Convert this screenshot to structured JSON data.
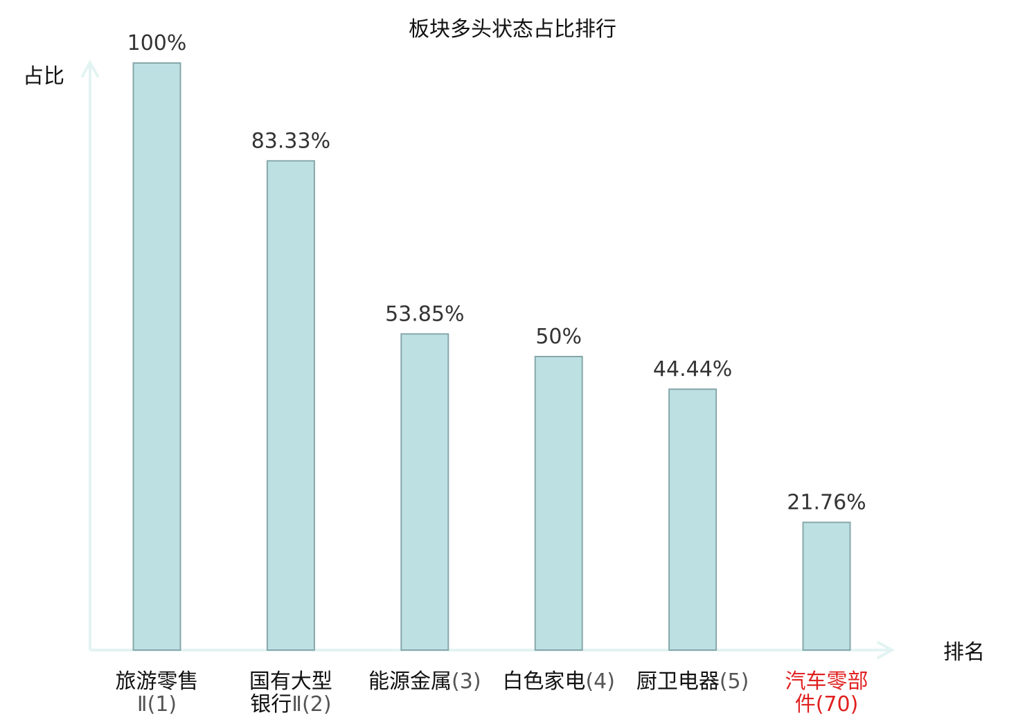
{
  "chart_data": {
    "type": "bar",
    "title": "板块多头状态占比排行",
    "ylabel": "占比",
    "xlabel": "排名",
    "ylim": [
      0,
      100
    ],
    "grid": false,
    "categories": [
      {
        "lines": [
          {
            "name": "旅游零售",
            "rank": ""
          },
          {
            "name": "",
            "rank": "Ⅱ(1)"
          }
        ],
        "highlight": false
      },
      {
        "lines": [
          {
            "name": "国有大型",
            "rank": ""
          },
          {
            "name": "银行",
            "rank": "Ⅱ(2)"
          }
        ],
        "highlight": false
      },
      {
        "lines": [
          {
            "name": "能源金属",
            "rank": "(3)"
          }
        ],
        "highlight": false
      },
      {
        "lines": [
          {
            "name": "白色家电",
            "rank": "(4)"
          }
        ],
        "highlight": false
      },
      {
        "lines": [
          {
            "name": "厨卫电器",
            "rank": "(5)"
          }
        ],
        "highlight": false
      },
      {
        "lines": [
          {
            "name": "汽车零部",
            "rank": ""
          },
          {
            "name": "件",
            "rank": "(70)"
          }
        ],
        "highlight": true
      }
    ],
    "values": [
      100,
      83.33,
      53.85,
      50,
      44.44,
      21.76
    ],
    "value_labels": [
      "100%",
      "83.33%",
      "53.85%",
      "50%",
      "44.44%",
      "21.76%"
    ],
    "colors": {
      "bar_fill": "#bde0e3",
      "bar_stroke": "#86a7ab",
      "axis": "#e2f4f2",
      "highlight": "#e02020"
    }
  }
}
